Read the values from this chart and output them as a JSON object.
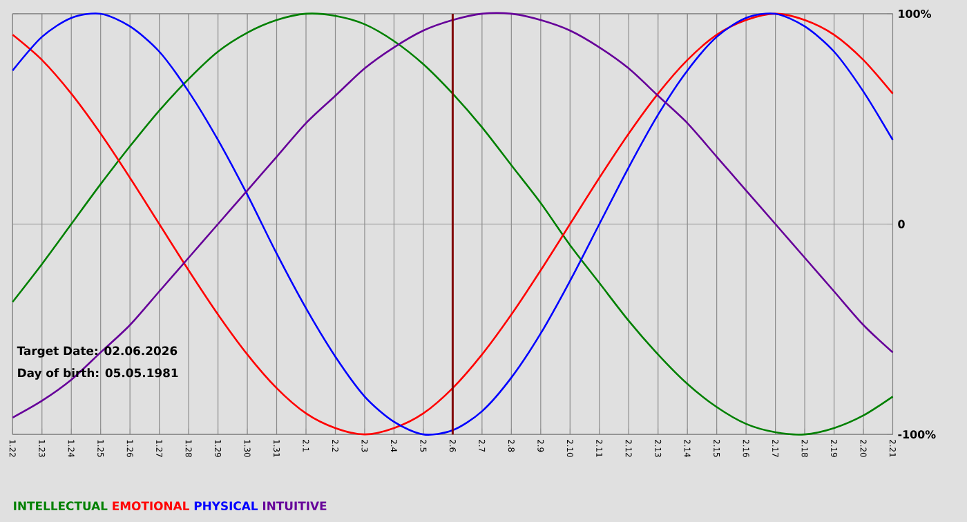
{
  "chart_data": {
    "type": "line",
    "categories": [
      "1.22",
      "1.23",
      "1.24",
      "1.25",
      "1.26",
      "1.27",
      "1.28",
      "1.29",
      "1.30",
      "1.31",
      "2.1",
      "2.2",
      "2.3",
      "2.4",
      "2.5",
      "2.6",
      "2.7",
      "2.8",
      "2.9",
      "2.10",
      "2.11",
      "2.12",
      "2.13",
      "2.14",
      "2.15",
      "2.16",
      "2.17",
      "2.18",
      "2.19",
      "2.20",
      "2.21"
    ],
    "series": [
      {
        "name": "INTELLECTUAL",
        "color": "#008000",
        "values": [
          -37,
          -19,
          0,
          19,
          37,
          54,
          69,
          82,
          91,
          97,
          100,
          99,
          95,
          87,
          76,
          62,
          46,
          28,
          10,
          -10,
          -28,
          -46,
          -62,
          -76,
          -87,
          -95,
          -99,
          -100,
          -97,
          -91,
          -82
        ]
      },
      {
        "name": "EMOTIONAL",
        "color": "#ff0000",
        "values": [
          90,
          78,
          62,
          43,
          22,
          0,
          -22,
          -43,
          -62,
          -78,
          -90,
          -97,
          -100,
          -97,
          -90,
          -78,
          -62,
          -43,
          -22,
          0,
          22,
          43,
          62,
          78,
          90,
          97,
          100,
          97,
          90,
          78,
          62
        ]
      },
      {
        "name": "PHYSICAL",
        "color": "#0000ff",
        "values": [
          73,
          89,
          98,
          100,
          94,
          82,
          63,
          40,
          14,
          -14,
          -40,
          -63,
          -82,
          -94,
          -100,
          -98,
          -89,
          -73,
          -52,
          -27,
          0,
          27,
          52,
          73,
          89,
          98,
          100,
          94,
          82,
          63,
          40
        ]
      },
      {
        "name": "INTUITIVE",
        "color": "#660099",
        "values": [
          -92,
          -84,
          -74,
          -61,
          -48,
          -32,
          -16,
          0,
          16,
          32,
          48,
          61,
          74,
          84,
          92,
          97,
          100,
          100,
          97,
          92,
          84,
          74,
          61,
          48,
          32,
          16,
          0,
          -16,
          -32,
          -48,
          -61
        ]
      }
    ],
    "ylim": [
      -100,
      100
    ],
    "yticks": [
      {
        "value": 100,
        "label": "100%"
      },
      0,
      {
        "value": -100,
        "label": "-100%"
      }
    ],
    "grid": true,
    "legend": "bottom",
    "marker": "none",
    "ref_lines": [
      {
        "axis": "x",
        "value": "2.6",
        "color": "#800000"
      }
    ],
    "annotations": [
      "Target Date: 02.06.2026",
      "Day of birth: 05.05.1981"
    ]
  }
}
